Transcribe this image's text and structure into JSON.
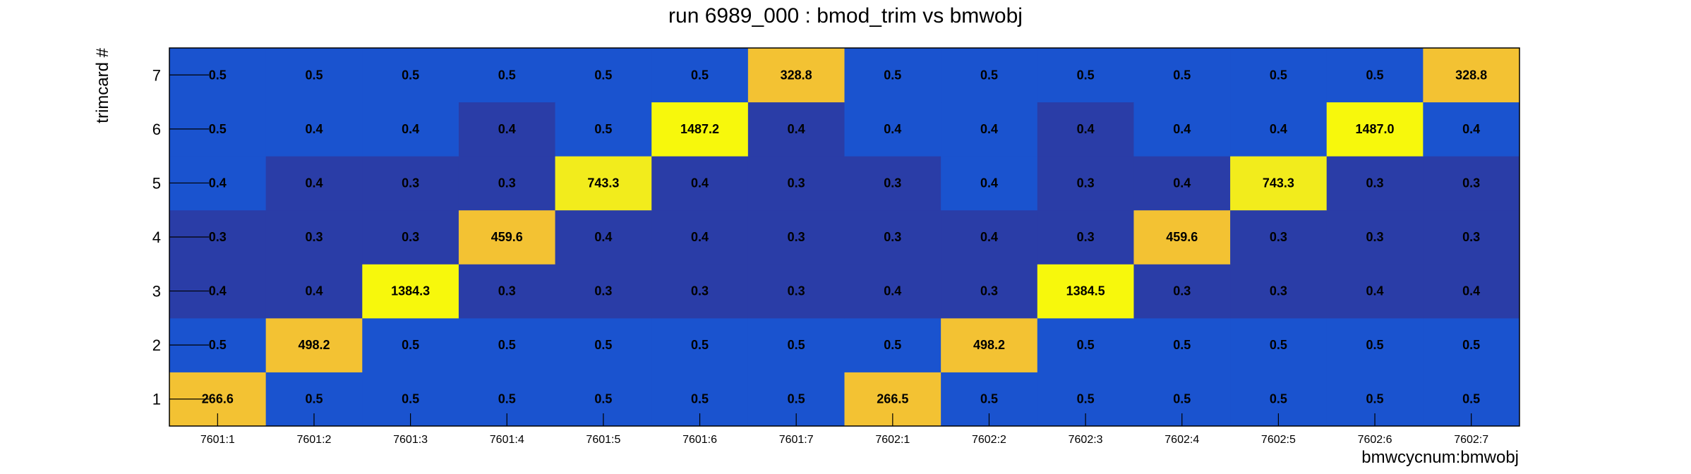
{
  "chart_data": {
    "type": "heatmap",
    "title": "run 6989_000 : bmod_trim vs bmwobj",
    "xlabel": "bmwcycnum:bmwobj",
    "ylabel": "trimcard #",
    "x_categories": [
      "7601:1",
      "7601:2",
      "7601:3",
      "7601:4",
      "7601:5",
      "7601:6",
      "7601:7",
      "7602:1",
      "7602:2",
      "7602:3",
      "7602:4",
      "7602:5",
      "7602:6",
      "7602:7"
    ],
    "y_categories": [
      "1",
      "2",
      "3",
      "4",
      "5",
      "6",
      "7"
    ],
    "values": [
      [
        "266.6",
        "0.5",
        "0.5",
        "0.5",
        "0.5",
        "0.5",
        "0.5",
        "266.5",
        "0.5",
        "0.5",
        "0.5",
        "0.5",
        "0.5",
        "0.5"
      ],
      [
        "0.5",
        "498.2",
        "0.5",
        "0.5",
        "0.5",
        "0.5",
        "0.5",
        "0.5",
        "498.2",
        "0.5",
        "0.5",
        "0.5",
        "0.5",
        "0.5"
      ],
      [
        "0.4",
        "0.4",
        "1384.3",
        "0.3",
        "0.3",
        "0.3",
        "0.3",
        "0.4",
        "0.3",
        "1384.5",
        "0.3",
        "0.3",
        "0.4",
        "0.4"
      ],
      [
        "0.3",
        "0.3",
        "0.3",
        "459.6",
        "0.4",
        "0.4",
        "0.3",
        "0.3",
        "0.4",
        "0.3",
        "459.6",
        "0.3",
        "0.3",
        "0.3"
      ],
      [
        "0.4",
        "0.4",
        "0.3",
        "0.3",
        "743.3",
        "0.4",
        "0.3",
        "0.3",
        "0.4",
        "0.3",
        "0.4",
        "743.3",
        "0.3",
        "0.3"
      ],
      [
        "0.5",
        "0.4",
        "0.4",
        "0.4",
        "0.5",
        "1487.2",
        "0.4",
        "0.4",
        "0.4",
        "0.4",
        "0.4",
        "0.4",
        "1487.0",
        "0.4"
      ],
      [
        "0.5",
        "0.5",
        "0.5",
        "0.5",
        "0.5",
        "0.5",
        "328.8",
        "0.5",
        "0.5",
        "0.5",
        "0.5",
        "0.5",
        "0.5",
        "328.8"
      ]
    ],
    "colors": {
      "low": "#2a3da7",
      "mid_low": "#1a53cf",
      "mid": "#f3c233",
      "high": "#f2ec1c",
      "max": "#f7f80c"
    },
    "grid": false
  }
}
